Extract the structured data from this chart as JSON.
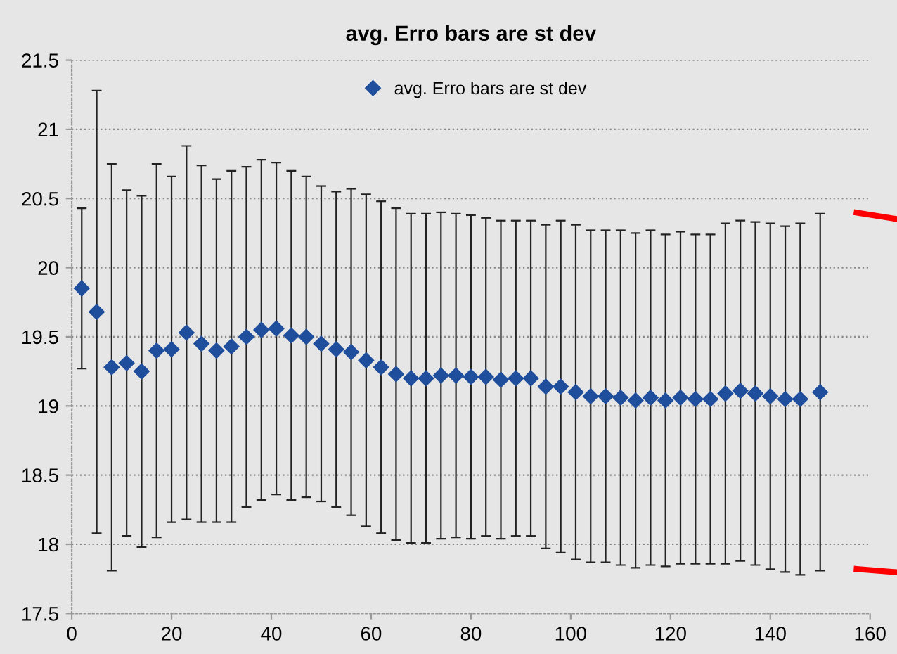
{
  "chart_data": {
    "type": "scatter",
    "title": "avg. Erro bars are st dev",
    "x": [
      2,
      5,
      8,
      11,
      14,
      17,
      20,
      23,
      26,
      29,
      32,
      35,
      38,
      41,
      44,
      47,
      50,
      53,
      56,
      59,
      62,
      65,
      68,
      71,
      74,
      77,
      80,
      83,
      86,
      89,
      92,
      95,
      98,
      101,
      104,
      107,
      110,
      113,
      116,
      119,
      122,
      125,
      128,
      131,
      134,
      137,
      140,
      143,
      146,
      150
    ],
    "series": [
      {
        "name": "avg. Erro bars are st dev",
        "color": "#1f4e9c",
        "values": [
          19.85,
          19.68,
          19.28,
          19.31,
          19.25,
          19.4,
          19.41,
          19.53,
          19.45,
          19.4,
          19.43,
          19.5,
          19.55,
          19.56,
          19.51,
          19.5,
          19.45,
          19.41,
          19.39,
          19.33,
          19.28,
          19.23,
          19.2,
          19.2,
          19.22,
          19.22,
          19.21,
          19.21,
          19.19,
          19.2,
          19.2,
          19.14,
          19.14,
          19.1,
          19.07,
          19.07,
          19.06,
          19.04,
          19.06,
          19.04,
          19.06,
          19.05,
          19.05,
          19.09,
          19.11,
          19.09,
          19.07,
          19.05,
          19.05,
          19.1
        ],
        "errors": [
          0.58,
          1.6,
          1.47,
          1.25,
          1.27,
          1.35,
          1.25,
          1.35,
          1.29,
          1.24,
          1.27,
          1.23,
          1.23,
          1.2,
          1.19,
          1.16,
          1.14,
          1.14,
          1.18,
          1.2,
          1.2,
          1.2,
          1.19,
          1.19,
          1.18,
          1.17,
          1.17,
          1.15,
          1.15,
          1.14,
          1.14,
          1.17,
          1.2,
          1.21,
          1.2,
          1.2,
          1.21,
          1.21,
          1.21,
          1.2,
          1.2,
          1.19,
          1.19,
          1.23,
          1.23,
          1.24,
          1.25,
          1.25,
          1.27,
          1.29
        ]
      }
    ],
    "xlim": [
      0,
      160
    ],
    "xticks": [
      0,
      20,
      40,
      60,
      80,
      100,
      120,
      140,
      160
    ],
    "ylim": [
      17.5,
      21.5
    ],
    "yticks": [
      17.5,
      18,
      18.5,
      19,
      19.5,
      20,
      20.5,
      21,
      21.5
    ],
    "grid": "y",
    "legend": "top",
    "marker": "diamond"
  }
}
